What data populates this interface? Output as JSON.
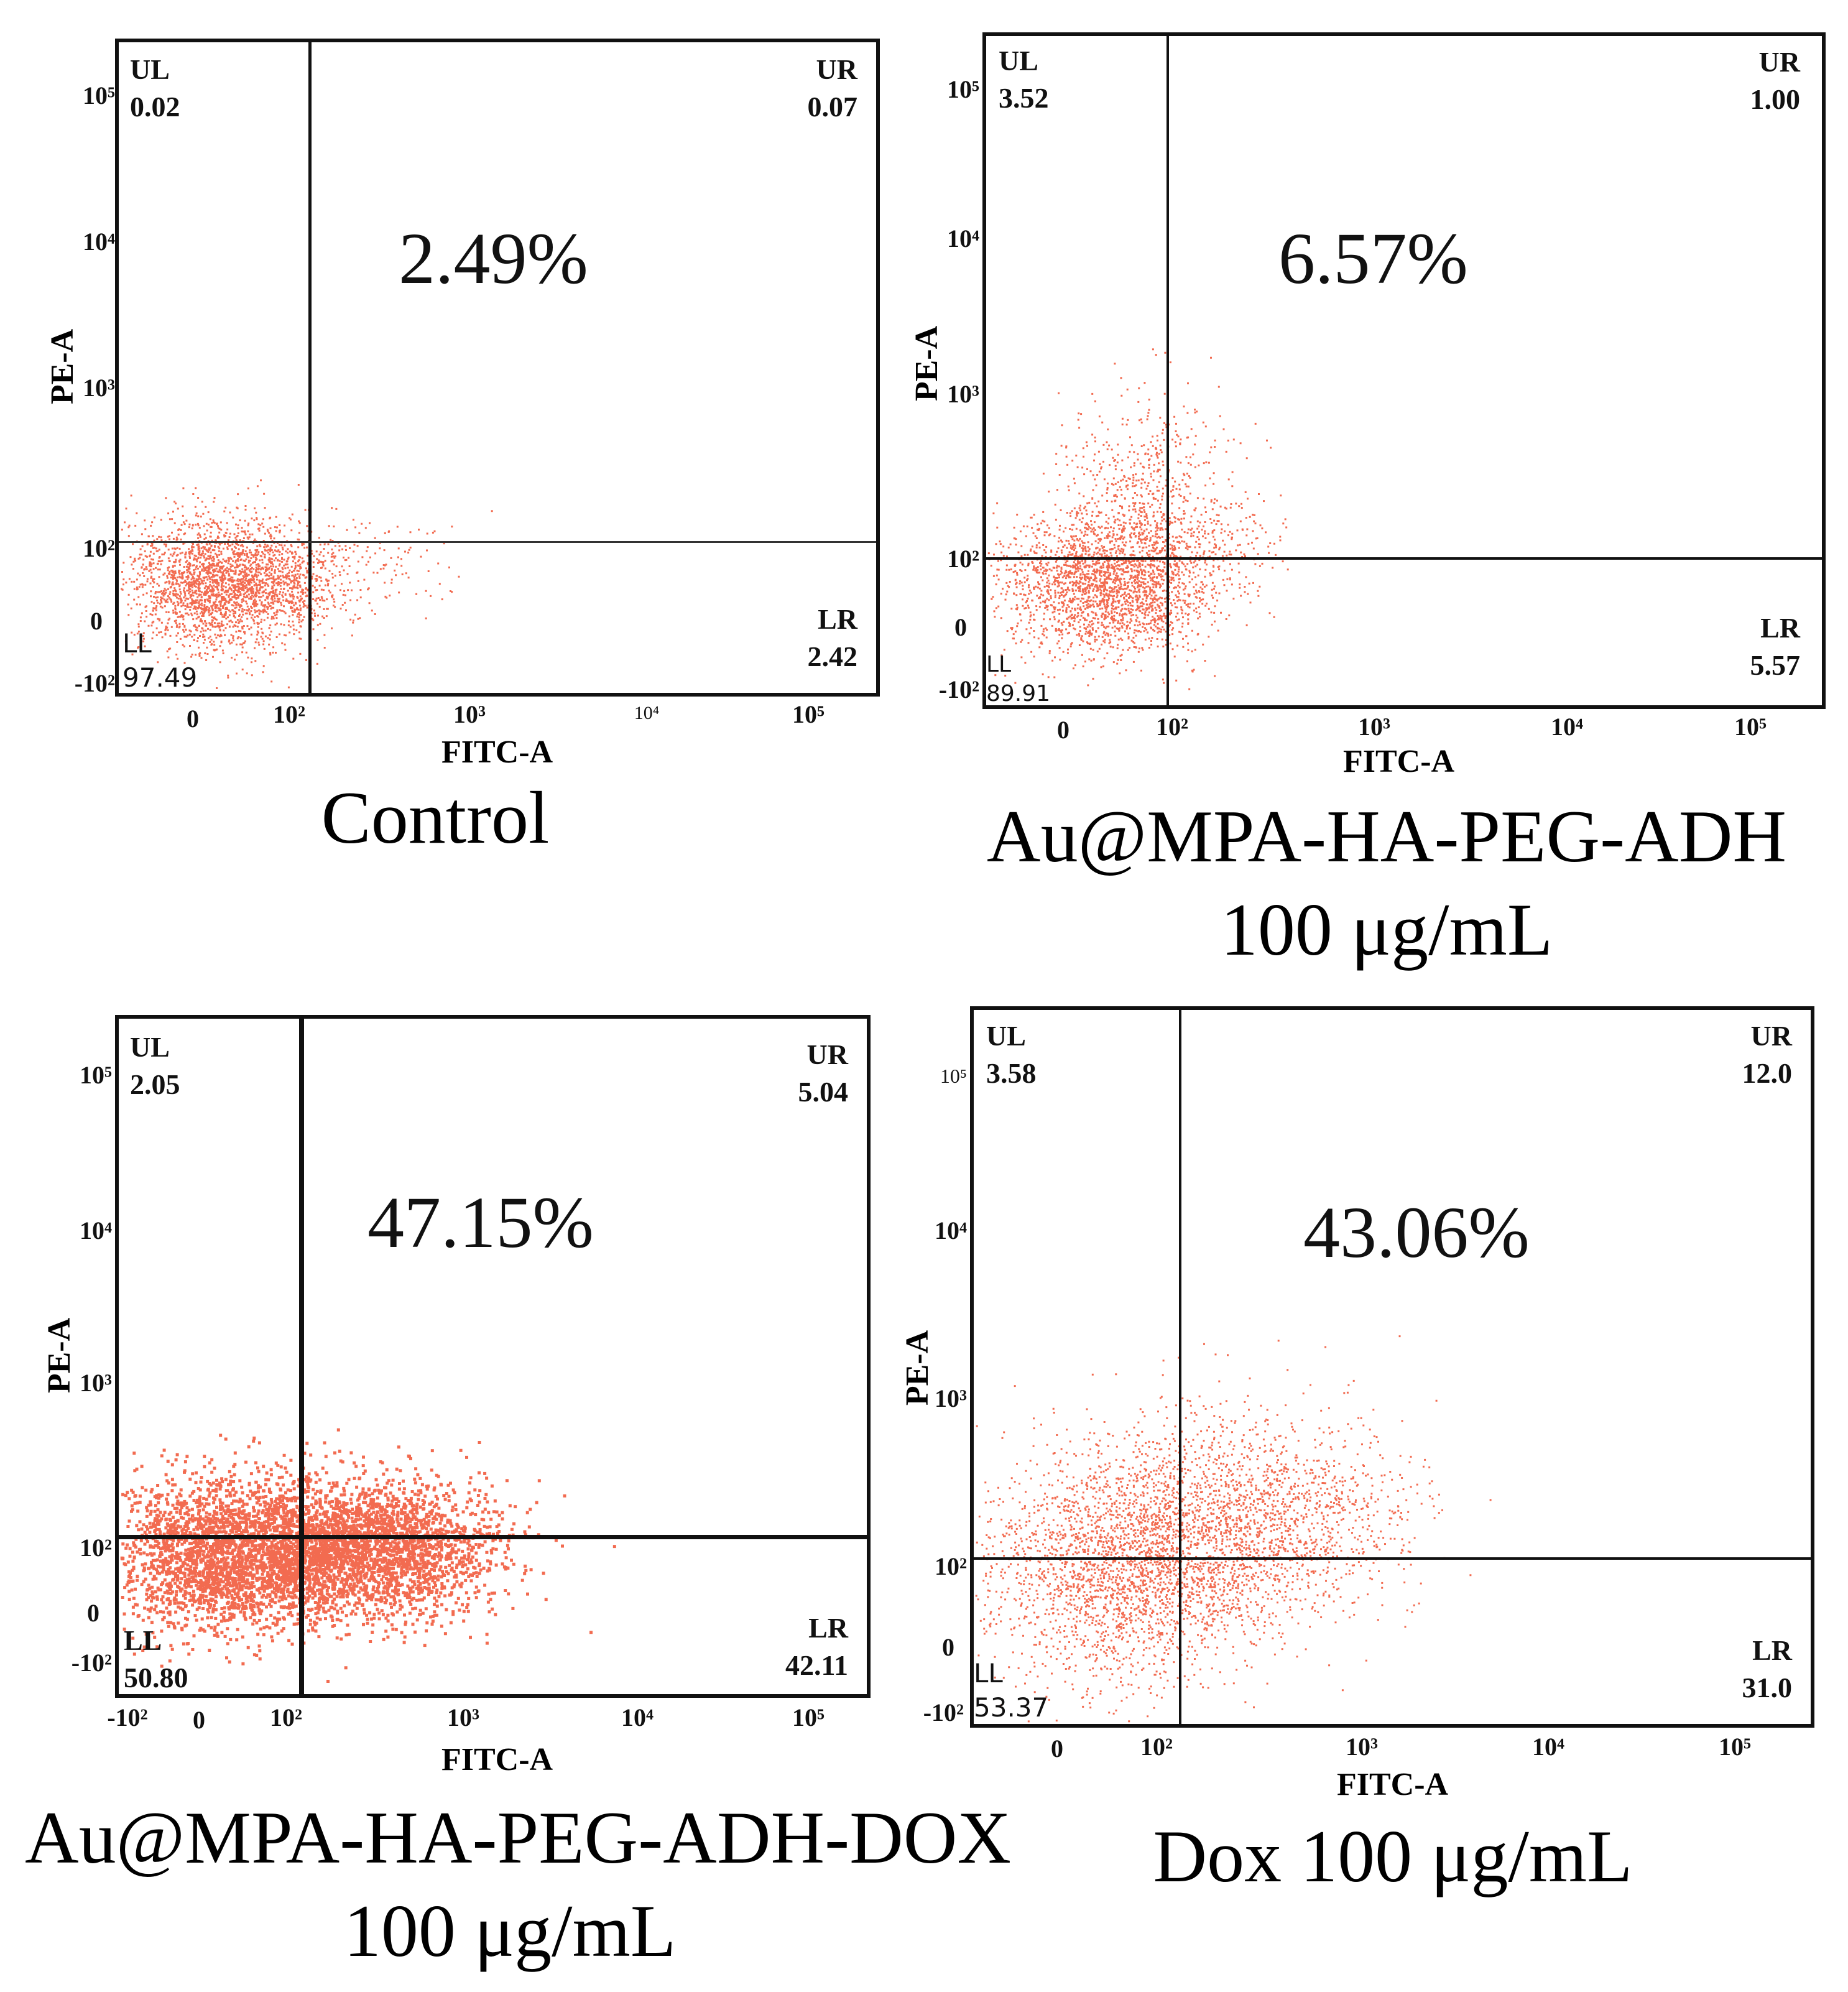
{
  "chart_data": [
    {
      "type": "scatter",
      "panel": "control",
      "xlabel": "FITC-A",
      "ylabel": "PE-A",
      "x_ticks": [
        "0",
        "10²",
        "10³",
        "10⁴",
        "10⁵"
      ],
      "y_ticks": [
        "10⁵",
        "10⁴",
        "10³",
        "10²",
        "0",
        "-10²"
      ],
      "quadrants": {
        "UL": {
          "label": "UL",
          "value": "0.02"
        },
        "UR": {
          "label": "UR",
          "value": "0.07"
        },
        "LL": {
          "label": "LL",
          "value": "97.49"
        },
        "LR": {
          "label": "LR",
          "value": "2.42"
        }
      },
      "apoptosis_percent": "2.49%",
      "caption": [
        "Control"
      ],
      "dot_color": "#f26b50"
    },
    {
      "type": "scatter",
      "panel": "au-mpa-ha-peg-adh",
      "xlabel": "FITC-A",
      "ylabel": "PE-A",
      "x_ticks": [
        "0",
        "10²",
        "10³",
        "10⁴",
        "10⁵"
      ],
      "y_ticks": [
        "10⁵",
        "10⁴",
        "10³",
        "10²",
        "0",
        "-10²"
      ],
      "quadrants": {
        "UL": {
          "label": "UL",
          "value": "3.52"
        },
        "UR": {
          "label": "UR",
          "value": "1.00"
        },
        "LL": {
          "label": "LL",
          "value": "89.91"
        },
        "LR": {
          "label": "LR",
          "value": "5.57"
        }
      },
      "apoptosis_percent": "6.57%",
      "caption": [
        "Au@MPA-HA-PEG-ADH",
        "100 μg/mL"
      ],
      "dot_color": "#f26b50"
    },
    {
      "type": "scatter",
      "panel": "au-mpa-ha-peg-adh-dox",
      "xlabel": "FITC-A",
      "ylabel": "PE-A",
      "x_ticks": [
        "-10²",
        "0",
        "10²",
        "10³",
        "10⁴",
        "10⁵"
      ],
      "y_ticks": [
        "10⁵",
        "10⁴",
        "10³",
        "10²",
        "0",
        "-10²"
      ],
      "quadrants": {
        "UL": {
          "label": "UL",
          "value": "2.05"
        },
        "UR": {
          "label": "UR",
          "value": "5.04"
        },
        "LL": {
          "label": "LL",
          "value": "50.80"
        },
        "LR": {
          "label": "LR",
          "value": "42.11"
        }
      },
      "apoptosis_percent": "47.15%",
      "caption": [
        "Au@MPA-HA-PEG-ADH-DOX",
        "100 μg/mL"
      ],
      "dot_color": "#f26b50"
    },
    {
      "type": "scatter",
      "panel": "dox",
      "xlabel": "FITC-A",
      "ylabel": "PE-A",
      "x_ticks": [
        "0",
        "10²",
        "10³",
        "10⁴",
        "10⁵"
      ],
      "y_ticks": [
        "10⁵",
        "10⁴",
        "10³",
        "10²",
        "0",
        "-10²"
      ],
      "quadrants": {
        "UL": {
          "label": "UL",
          "value": "3.58"
        },
        "UR": {
          "label": "UR",
          "value": "12.0"
        },
        "LL": {
          "label": "LL",
          "value": "53.37"
        },
        "LR": {
          "label": "LR",
          "value": "31.0"
        }
      },
      "apoptosis_percent": "43.06%",
      "caption": [
        "Dox  100 μg/mL"
      ],
      "dot_color": "#f26b50"
    }
  ]
}
